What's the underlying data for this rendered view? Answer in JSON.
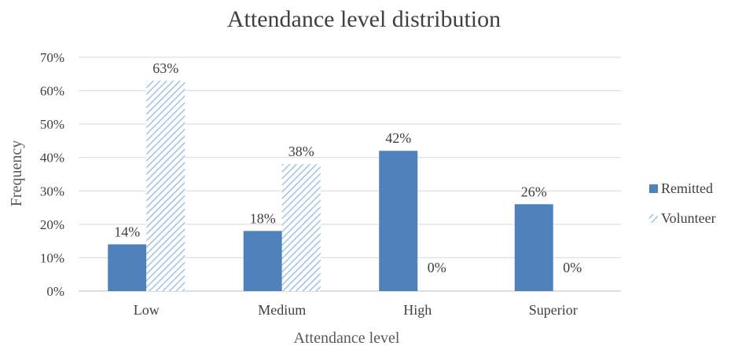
{
  "chart_data": {
    "type": "bar",
    "title": "Attendance level distribution",
    "xlabel": "Attendance level",
    "ylabel": "Frequency",
    "categories": [
      "Low",
      "Medium",
      "High",
      "Superior"
    ],
    "series": [
      {
        "name": "Remitted",
        "values": [
          14,
          18,
          42,
          26
        ],
        "labels": [
          "14%",
          "18%",
          "42%",
          "26%"
        ],
        "color": "#4f81bd",
        "pattern": "solid"
      },
      {
        "name": "Volunteer",
        "values": [
          63,
          38,
          0,
          0
        ],
        "labels": [
          "63%",
          "38%",
          "0%",
          "0%"
        ],
        "color": "#9dc3e6",
        "pattern": "diagonal-hatch"
      }
    ],
    "ylim": [
      0,
      70
    ],
    "yticks": [
      "0%",
      "10%",
      "20%",
      "30%",
      "40%",
      "50%",
      "60%",
      "70%"
    ],
    "grid": true,
    "legend_position": "right"
  }
}
